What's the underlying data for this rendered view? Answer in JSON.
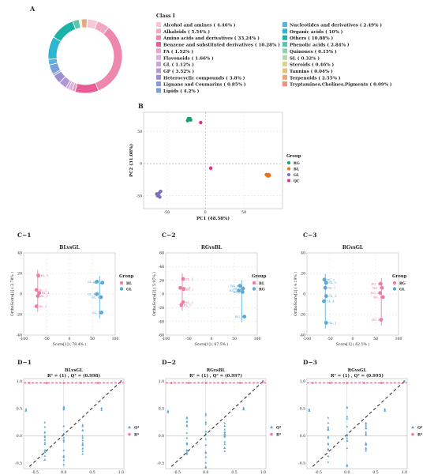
{
  "panel_labels": {
    "A": "A",
    "B": "B",
    "C1": "C−1",
    "C2": "C−2",
    "C3": "C−3",
    "D1": "D−1",
    "D2": "D−2",
    "D3": "D−3"
  },
  "chart_data": [
    {
      "id": "A",
      "type": "pie",
      "donut": true,
      "legend_title": "Class I",
      "slices": [
        {
          "label": "Alcohol and amines ( 4.46% )",
          "value": 4.46,
          "color": "#f7c6d9"
        },
        {
          "label": "Alkaloids ( 5.54% )",
          "value": 5.54,
          "color": "#f4a7c4"
        },
        {
          "label": "Amino acids and derivatives ( 33.24% )",
          "value": 33.24,
          "color": "#ee87ae"
        },
        {
          "label": "Benzene and substituted derivatives ( 10.28% )",
          "value": 10.28,
          "color": "#e85d96"
        },
        {
          "label": "FA ( 1.52% )",
          "value": 1.52,
          "color": "#e6a4c7"
        },
        {
          "label": "Flavonoids ( 1.66% )",
          "value": 1.66,
          "color": "#d9b0d9"
        },
        {
          "label": "GL ( 1.12% )",
          "value": 1.12,
          "color": "#c9a6dc"
        },
        {
          "label": "GP ( 3.52% )",
          "value": 3.52,
          "color": "#b497d6"
        },
        {
          "label": "Heterocyclic compounds ( 3.8% )",
          "value": 3.8,
          "color": "#9b8fd1"
        },
        {
          "label": "Lignans and Coumarins ( 0.85% )",
          "value": 0.85,
          "color": "#8799d6"
        },
        {
          "label": "Lipids ( 4.2% )",
          "value": 4.2,
          "color": "#7aa0d8"
        },
        {
          "label": "Nucleotides and derivatives ( 2.49% )",
          "value": 2.49,
          "color": "#5bb0dd"
        },
        {
          "label": "Organic acids ( 10% )",
          "value": 10,
          "color": "#2eb6d0"
        },
        {
          "label": "Others ( 10.88% )",
          "value": 10.88,
          "color": "#1bb3a6"
        },
        {
          "label": "Phenolic acids ( 2.84% )",
          "value": 2.84,
          "color": "#5cc4a8"
        },
        {
          "label": "Quinones ( 0.15% )",
          "value": 0.15,
          "color": "#8fd3b0"
        },
        {
          "label": "SL ( 0.32% )",
          "value": 0.32,
          "color": "#b4d9a4"
        },
        {
          "label": "Steroids ( 0.46% )",
          "value": 0.46,
          "color": "#d6d58e"
        },
        {
          "label": "Tannins ( 0.04% )",
          "value": 0.04,
          "color": "#e7c27a"
        },
        {
          "label": "Terpenoids ( 2.55% )",
          "value": 2.55,
          "color": "#eba77a"
        },
        {
          "label": "Tryptamines,Cholines,Pigments ( 0.09% )",
          "value": 0.09,
          "color": "#f08f7c"
        }
      ]
    },
    {
      "id": "B",
      "type": "scatter",
      "xlabel": "PC1 (48.58%)",
      "ylabel": "PC2 (31.08%)",
      "xlim": [
        -80,
        100
      ],
      "ylim": [
        -70,
        80
      ],
      "xticks": [
        -50,
        0,
        50
      ],
      "yticks": [
        -50,
        0,
        50
      ],
      "legend_title": "Group",
      "series": [
        {
          "name": "RG",
          "color": "#1a9e77",
          "points": [
            [
              -22,
              68
            ],
            [
              -20,
              70
            ],
            [
              -23,
              67
            ],
            [
              -21,
              69
            ],
            [
              -19,
              68
            ],
            [
              -22,
              70
            ]
          ]
        },
        {
          "name": "BL",
          "color": "#e9731a",
          "points": [
            [
              80,
              -18
            ],
            [
              82,
              -17
            ],
            [
              81,
              -19
            ],
            [
              83,
              -18
            ],
            [
              79,
              -17
            ],
            [
              82,
              -19
            ]
          ]
        },
        {
          "name": "GL",
          "color": "#7b6fbf",
          "points": [
            [
              -62,
              -50
            ],
            [
              -60,
              -46
            ],
            [
              -58,
              -43
            ],
            [
              -61,
              -48
            ],
            [
              -59,
              -52
            ],
            [
              -63,
              -47
            ]
          ]
        },
        {
          "name": "QC",
          "color": "#e7298a",
          "points": [
            [
              7,
              -7
            ],
            [
              -6,
              64
            ]
          ]
        }
      ]
    },
    {
      "id": "C1",
      "type": "scatter",
      "title": "BLvsGL",
      "xlabel": "Score[1] ( 78.4% )",
      "ylabel": "OrthoScore[2] ( 3.78% )",
      "xlim": [
        -100,
        100
      ],
      "ylim": [
        -40,
        40
      ],
      "xticks": [
        -100,
        -50,
        0,
        50,
        100
      ],
      "yticks": [
        -40,
        -20,
        0,
        20,
        40
      ],
      "legend_title": "Group",
      "series": [
        {
          "name": "BL",
          "color": "#ee7aa5",
          "points": [
            [
              -68,
              18,
              "BL_1"
            ],
            [
              -72,
              4,
              "BL_2"
            ],
            [
              -66,
              1,
              "BL_4"
            ],
            [
              -69,
              -2,
              "BL_5"
            ],
            [
              -72,
              -12,
              "BL_3"
            ]
          ]
        },
        {
          "name": "GL",
          "color": "#5ba7d6",
          "points": [
            [
              60,
              12,
              "GL_2"
            ],
            [
              72,
              11,
              "GL_3"
            ],
            [
              60,
              0,
              "GL_4"
            ],
            [
              69,
              -3,
              "GL_6"
            ],
            [
              70,
              -18,
              "GL_1"
            ]
          ]
        }
      ]
    },
    {
      "id": "C2",
      "type": "scatter",
      "title": "RGvsBL",
      "xlabel": "Score[1] ( 67.5% )",
      "ylabel": "OrthoScore[2] ( 5.97% )",
      "xlim": [
        -100,
        100
      ],
      "ylim": [
        -60,
        60
      ],
      "xticks": [
        -100,
        -50,
        0,
        50,
        100
      ],
      "yticks": [
        -60,
        -40,
        -20,
        0,
        20,
        40,
        60
      ],
      "legend_title": "Group",
      "series": [
        {
          "name": "BL",
          "color": "#ee7aa5",
          "points": [
            [
              -62,
              22,
              "BL_1"
            ],
            [
              -68,
              9,
              "BL_4"
            ],
            [
              -61,
              7,
              "BL_2"
            ],
            [
              -62,
              -12,
              "BL_3"
            ],
            [
              -66,
              -16,
              "BL_5"
            ]
          ]
        },
        {
          "name": "RG",
          "color": "#5ba7d6",
          "points": [
            [
              62,
              12,
              "RG_6"
            ],
            [
              69,
              8,
              "RG_4"
            ],
            [
              60,
              5,
              "RG_2"
            ],
            [
              68,
              3,
              "RG_3"
            ],
            [
              72,
              -33,
              "RG_1"
            ]
          ]
        }
      ]
    },
    {
      "id": "C3",
      "type": "scatter",
      "title": "RGvsGL",
      "xlabel": "Score[1] ( 62.5% )",
      "ylabel": "OrthoScore[2] ( 4.19% )",
      "xlim": [
        -100,
        100
      ],
      "ylim": [
        -40,
        40
      ],
      "xticks": [
        -100,
        -50,
        0,
        50,
        100
      ],
      "yticks": [
        -40,
        -20,
        0,
        20,
        40
      ],
      "legend_title": "Group",
      "series": [
        {
          "name": "RG",
          "color": "#ee7aa5",
          "points": [
            [
              61,
              10,
              "RG_1"
            ],
            [
              64,
              6,
              "RG_2"
            ],
            [
              60,
              1,
              "RG_3"
            ],
            [
              66,
              -3,
              "RG_4"
            ],
            [
              62,
              -25,
              "RG_5"
            ]
          ]
        },
        {
          "name": "GL",
          "color": "#5ba7d6",
          "points": [
            [
              -62,
              14,
              "GL_2"
            ],
            [
              -58,
              11,
              "GL_5"
            ],
            [
              -60,
              6,
              "GL_1"
            ],
            [
              -58,
              -2,
              "GL_3"
            ],
            [
              -63,
              -7,
              "GL_4"
            ],
            [
              -58,
              -28,
              "GL_1"
            ]
          ]
        }
      ]
    },
    {
      "id": "D1",
      "type": "scatter",
      "title": "BLvsGL",
      "subtitle": "R² = (1) , Q² = (0.998)",
      "xlim": [
        -0.7,
        1.05
      ],
      "ylim": [
        -0.6,
        1.05
      ],
      "xticks": [
        -0.5,
        0,
        0.5,
        1.0
      ],
      "xtick_labels": [
        "-0.5",
        "0.0",
        "0.5",
        "1.0"
      ],
      "yticks": [
        -0.5,
        0,
        0.5,
        1.0
      ],
      "ytick_labels": [
        "-0.5",
        "0.0",
        "0.5",
        "1.0"
      ],
      "series": [
        {
          "name": "Q²",
          "color": "#5ba7d6"
        },
        {
          "name": "R²",
          "color": "#ee7aa5"
        }
      ],
      "r2_line": {
        "intercept": 0.97,
        "slope": 0.0
      },
      "q2_line": {
        "x0": -0.6,
        "y0": -0.56,
        "x1": 1.0,
        "y1": 1.0
      }
    },
    {
      "id": "D2",
      "type": "scatter",
      "title": "RGvsBL",
      "subtitle": "R² = (1) , Q² = (0.997)",
      "xlim": [
        -0.7,
        1.05
      ],
      "ylim": [
        -0.6,
        1.05
      ],
      "xticks": [
        -0.5,
        0,
        0.5,
        1.0
      ],
      "xtick_labels": [
        "-0.5",
        "0.0",
        "0.5",
        "1.0"
      ],
      "yticks": [
        -0.5,
        0,
        0.5,
        1.0
      ],
      "ytick_labels": [
        "-0.5",
        "0.0",
        "0.5",
        "1.0"
      ],
      "series": [
        {
          "name": "Q²",
          "color": "#5ba7d6"
        },
        {
          "name": "R²",
          "color": "#ee7aa5"
        }
      ],
      "r2_line": {
        "intercept": 0.97,
        "slope": 0.0
      },
      "q2_line": {
        "x0": -0.6,
        "y0": -0.56,
        "x1": 1.0,
        "y1": 1.0
      }
    },
    {
      "id": "D3",
      "type": "scatter",
      "title": "RGvsGL",
      "subtitle": "R² = (1) , Q² = (0.995)",
      "xlim": [
        -0.7,
        1.05
      ],
      "ylim": [
        -0.6,
        1.05
      ],
      "xticks": [
        -0.5,
        0,
        0.5,
        1.0
      ],
      "xtick_labels": [
        "-0.5",
        "0.0",
        "0.5",
        "1.0"
      ],
      "yticks": [
        -0.5,
        0,
        0.5,
        1.0
      ],
      "ytick_labels": [
        "-0.5",
        "0.0",
        "0.5",
        "1.0"
      ],
      "legend": [
        "Q²",
        "R²"
      ],
      "series": [
        {
          "name": "Q²",
          "color": "#5ba7d6"
        },
        {
          "name": "R²",
          "color": "#ee7aa5"
        }
      ],
      "r2_line": {
        "intercept": 0.97,
        "slope": 0.0
      },
      "q2_line": {
        "x0": -0.6,
        "y0": -0.56,
        "x1": 1.0,
        "y1": 1.0
      }
    }
  ]
}
